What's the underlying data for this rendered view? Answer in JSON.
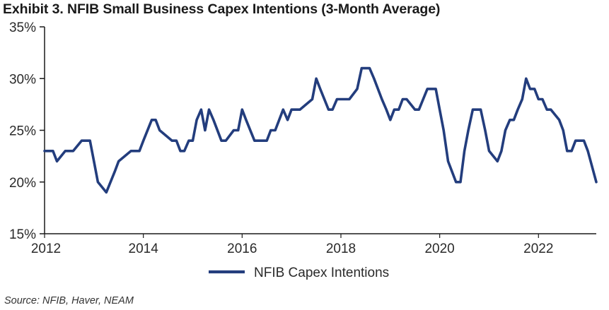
{
  "title": "Exhibit 3. NFIB Small Business Capex Intentions (3-Month Average)",
  "source": "Source: NFIB, Haver, NEAM",
  "colors": {
    "series": "#233d7d",
    "axis": "#1a1a1a",
    "text": "#2a2a2a"
  },
  "chart_data": {
    "type": "line",
    "title": "Exhibit 3. NFIB Small Business Capex Intentions (3-Month Average)",
    "xlabel": "",
    "ylabel": "",
    "xlim": [
      2012,
      2023.17
    ],
    "ylim": [
      15,
      35
    ],
    "x_ticks": [
      2012,
      2014,
      2016,
      2018,
      2020,
      2022
    ],
    "x_tick_labels": [
      "2012",
      "2014",
      "2016",
      "2018",
      "2020",
      "2022"
    ],
    "y_ticks": [
      15,
      20,
      25,
      30,
      35
    ],
    "y_tick_labels": [
      "15%",
      "20%",
      "25%",
      "30%",
      "35%"
    ],
    "grid": false,
    "legend": "bottom-center",
    "series": [
      {
        "name": "NFIB Capex Intentions",
        "x": [
          2012.0,
          2012.17,
          2012.25,
          2012.42,
          2012.58,
          2012.75,
          2012.92,
          2013.0,
          2013.08,
          2013.25,
          2013.42,
          2013.5,
          2013.75,
          2013.92,
          2014.0,
          2014.17,
          2014.25,
          2014.33,
          2014.58,
          2014.67,
          2014.75,
          2014.83,
          2014.92,
          2015.0,
          2015.08,
          2015.17,
          2015.25,
          2015.33,
          2015.42,
          2015.58,
          2015.67,
          2015.83,
          2015.92,
          2016.0,
          2016.08,
          2016.25,
          2016.5,
          2016.58,
          2016.67,
          2016.83,
          2016.92,
          2017.0,
          2017.17,
          2017.42,
          2017.5,
          2017.58,
          2017.75,
          2017.83,
          2017.92,
          2018.0,
          2018.17,
          2018.33,
          2018.42,
          2018.58,
          2018.67,
          2018.83,
          2018.92,
          2019.0,
          2019.08,
          2019.17,
          2019.25,
          2019.33,
          2019.5,
          2019.58,
          2019.75,
          2019.92,
          2020.0,
          2020.08,
          2020.17,
          2020.33,
          2020.42,
          2020.5,
          2020.58,
          2020.67,
          2020.83,
          2020.92,
          2021.0,
          2021.17,
          2021.25,
          2021.33,
          2021.42,
          2021.5,
          2021.58,
          2021.67,
          2021.75,
          2021.83,
          2021.92,
          2022.0,
          2022.08,
          2022.17,
          2022.25,
          2022.42,
          2022.5,
          2022.58,
          2022.67,
          2022.75,
          2022.92,
          2023.0,
          2023.17
        ],
        "y": [
          23,
          23,
          22,
          23,
          23,
          24,
          24,
          22,
          20,
          19,
          21,
          22,
          23,
          23,
          24,
          26,
          26,
          25,
          24,
          24,
          23,
          23,
          24,
          24,
          26,
          27,
          25,
          27,
          26,
          24,
          24,
          25,
          25,
          27,
          26,
          24,
          24,
          25,
          25,
          27,
          26,
          27,
          27,
          28,
          30,
          29,
          27,
          27,
          28,
          28,
          28,
          29,
          31,
          31,
          30,
          28,
          27,
          26,
          27,
          27,
          28,
          28,
          27,
          27,
          29,
          29,
          27,
          25,
          22,
          20,
          20,
          23,
          25,
          27,
          27,
          25,
          23,
          22,
          23,
          25,
          26,
          26,
          27,
          28,
          30,
          29,
          29,
          28,
          28,
          27,
          27,
          26,
          25,
          23,
          23,
          24,
          24,
          23,
          20
        ]
      }
    ]
  }
}
